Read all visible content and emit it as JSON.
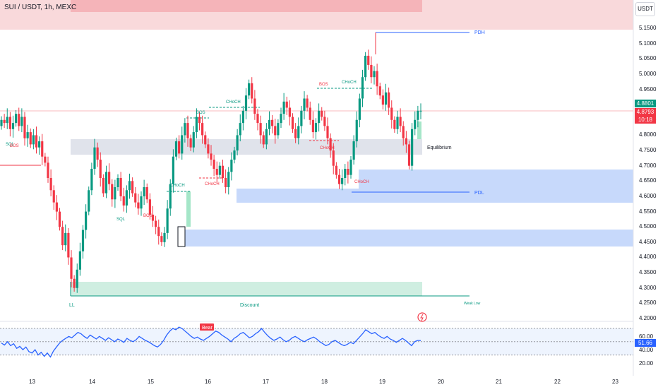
{
  "header": {
    "title": "SUI / USDT, 1h, MEXC",
    "currency": "USDT"
  },
  "price_axis": {
    "ticks": [
      "5.1500",
      "5.1000",
      "5.0500",
      "5.0000",
      "4.9500",
      "4.9000",
      "4.8500",
      "4.8000",
      "4.7500",
      "4.7000",
      "4.6500",
      "4.6000",
      "4.5500",
      "4.5000",
      "4.4500",
      "4.4000",
      "4.3500",
      "4.3000",
      "4.2500",
      "4.2000"
    ],
    "last_price": "4.8801",
    "current_price": "4.8793",
    "countdown": "10:18"
  },
  "rsi_axis": {
    "ticks": [
      "60.00",
      "40.00",
      "20.00"
    ],
    "value": "51.66"
  },
  "time_axis": {
    "labels": [
      "13",
      "14",
      "15",
      "16",
      "17",
      "18",
      "19",
      "20",
      "21",
      "22",
      "23"
    ]
  },
  "annotations": {
    "pdh": "PDH",
    "pdl": "PDL",
    "equilibrium": "Equilibrium",
    "ll": "LL",
    "discount": "Discount",
    "weak_low": "Weak Low",
    "bear": "Bear",
    "sql": "SQL",
    "bos": "BOS",
    "choch": "CHoCH"
  },
  "colors": {
    "bull": "#089981",
    "bear": "#f23645",
    "rsi": "#2962ff",
    "premium_zone": "#f6c9cc",
    "demand_zone": "#c7d9fb",
    "equilibrium_zone": "#e0e3eb",
    "discount_zone": "#cfeee1"
  }
}
